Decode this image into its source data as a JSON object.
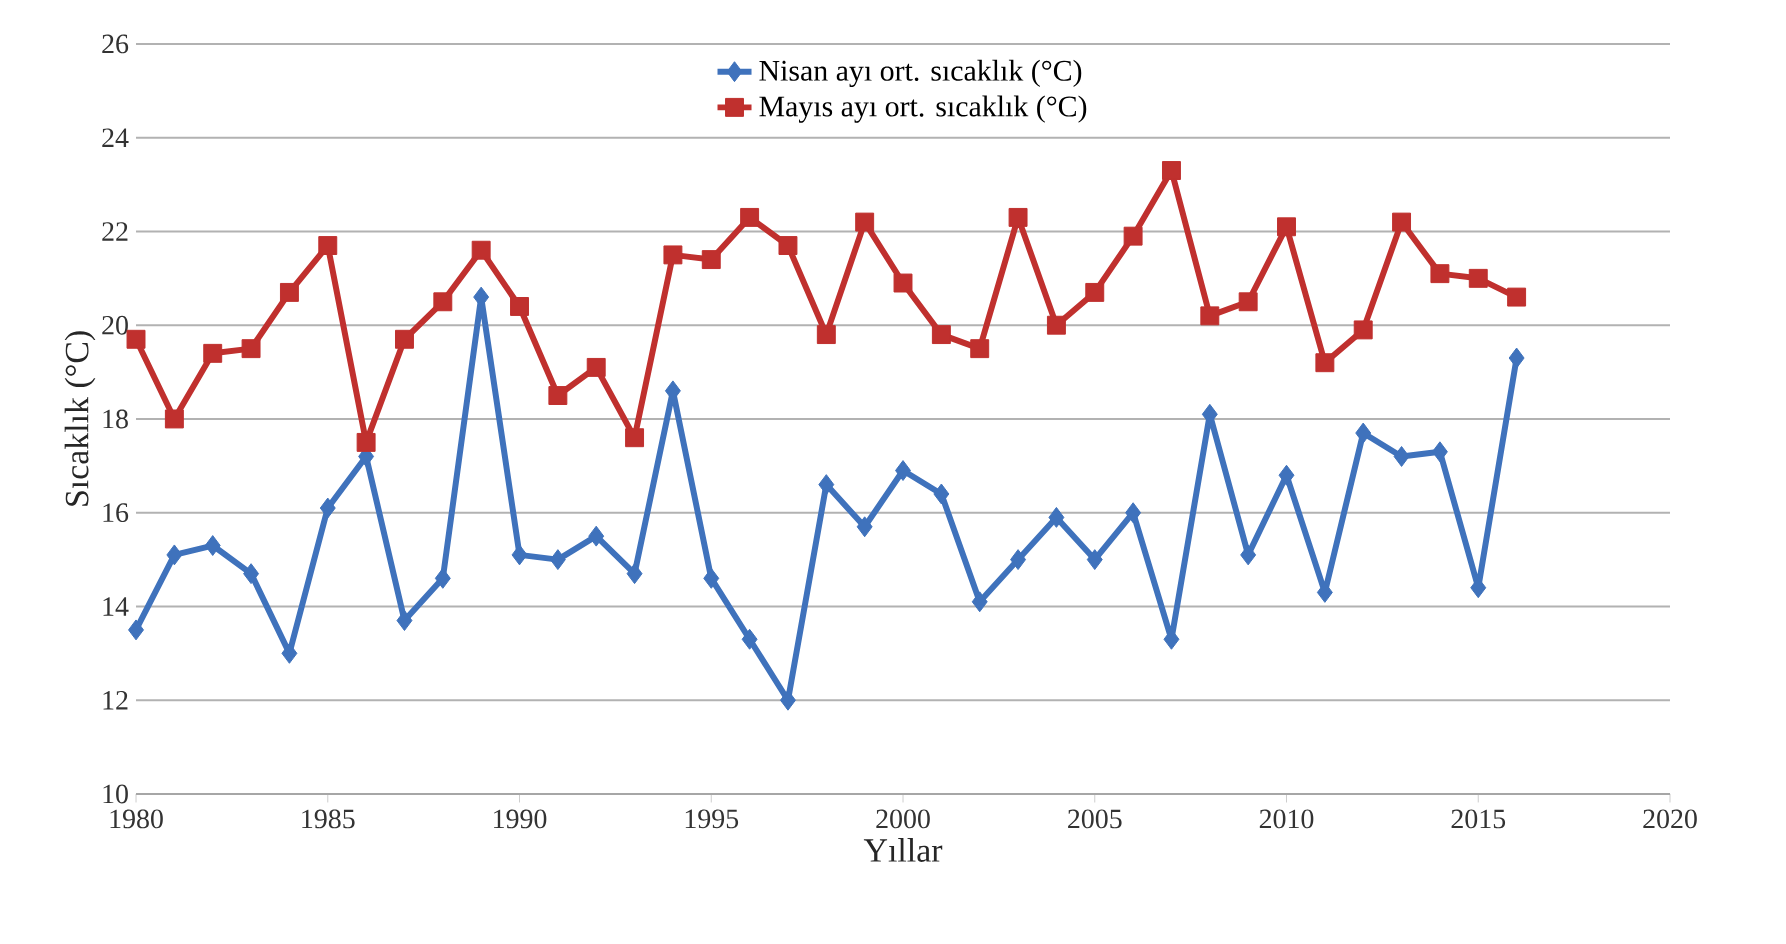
{
  "chart_data": {
    "type": "line",
    "xlabel": "Yıllar",
    "ylabel": "Sıcaklık (°C)",
    "x": [
      1980,
      1981,
      1982,
      1983,
      1984,
      1985,
      1986,
      1987,
      1988,
      1989,
      1990,
      1991,
      1992,
      1993,
      1994,
      1995,
      1996,
      1997,
      1998,
      1999,
      2000,
      2001,
      2002,
      2003,
      2004,
      2005,
      2006,
      2007,
      2008,
      2009,
      2010,
      2011,
      2012,
      2013,
      2014,
      2015,
      2016
    ],
    "series": [
      {
        "name": "Nisan ayı ort. sıcaklık (°C)",
        "color": "#3f72bc",
        "marker": "diamond",
        "values": [
          13.5,
          15.1,
          15.3,
          14.7,
          13.0,
          16.1,
          17.2,
          13.7,
          14.6,
          20.6,
          15.1,
          15.0,
          15.5,
          14.7,
          18.6,
          14.6,
          13.3,
          12.0,
          16.6,
          15.7,
          16.9,
          16.4,
          14.1,
          15.0,
          15.9,
          15.0,
          16.0,
          13.3,
          18.1,
          15.1,
          16.8,
          14.3,
          17.7,
          17.2,
          17.3,
          14.4,
          19.3
        ]
      },
      {
        "name": "Mayıs ayı ort. sıcaklık (°C)",
        "color": "#c0302e",
        "marker": "square",
        "values": [
          19.7,
          18.0,
          19.4,
          19.5,
          20.7,
          21.7,
          17.5,
          19.7,
          20.5,
          21.6,
          20.4,
          18.5,
          19.1,
          17.6,
          21.5,
          21.4,
          22.3,
          21.7,
          19.8,
          22.2,
          20.9,
          19.8,
          19.5,
          22.3,
          20.0,
          20.7,
          21.9,
          23.3,
          20.2,
          20.5,
          22.1,
          19.2,
          19.9,
          22.2,
          21.1,
          21.0,
          20.6
        ]
      }
    ],
    "xlim": [
      1980,
      2020
    ],
    "xticks": [
      1980,
      1985,
      1990,
      1995,
      2000,
      2005,
      2010,
      2015,
      2020
    ],
    "ylim": [
      10,
      26
    ],
    "yticks": [
      10,
      12,
      14,
      16,
      18,
      20,
      22,
      24,
      26
    ],
    "grid": "y",
    "legend": "top",
    "line_style": "solid"
  }
}
